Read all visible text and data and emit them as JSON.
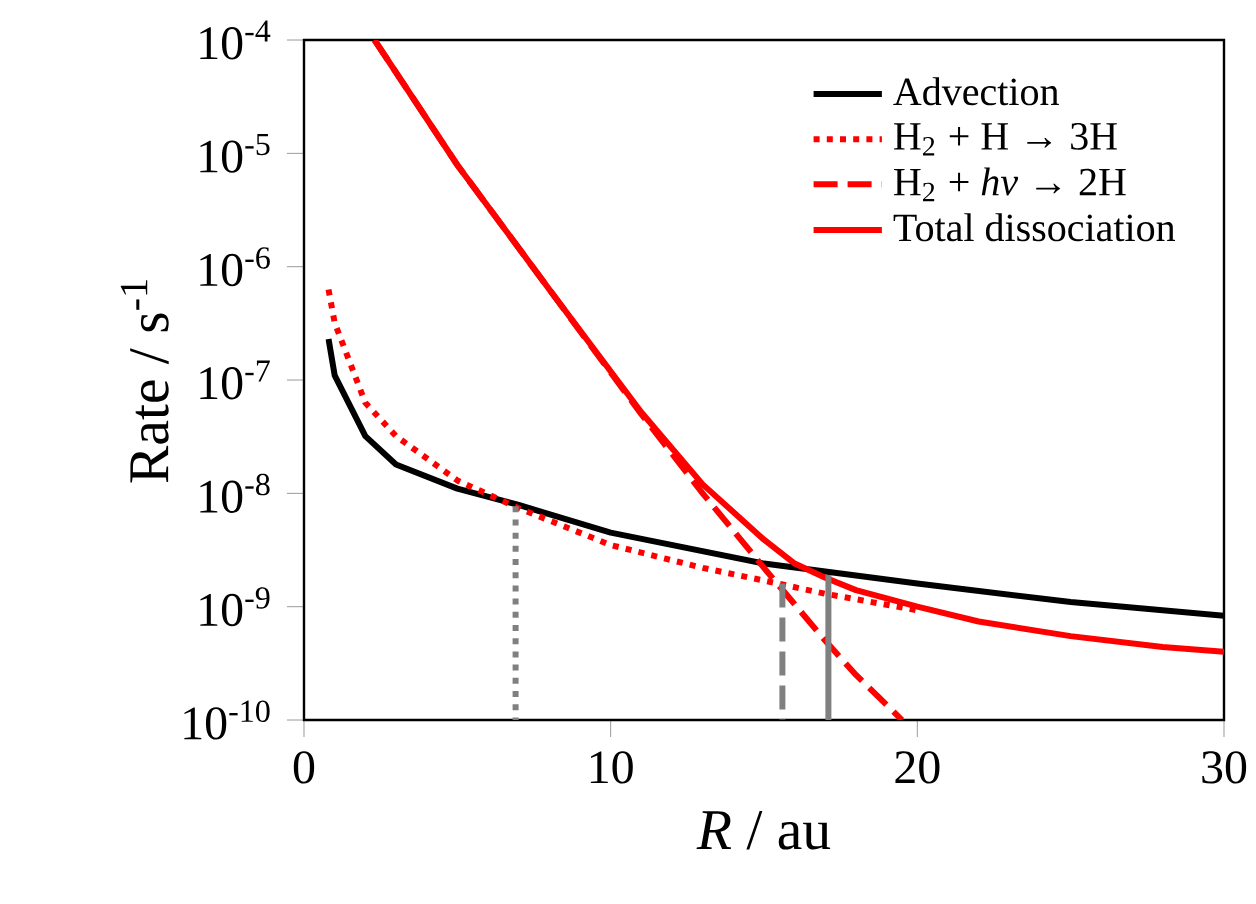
{
  "chart_data": {
    "type": "line",
    "xlabel": "*R* / au",
    "ylabel": "Rate / s$^{-1}$",
    "log": "y",
    "legend": "top right",
    "grid": false,
    "xlim": [
      0,
      30
    ],
    "xticks": [
      0,
      10,
      20,
      30
    ],
    "ylim": [
      1e-10,
      0.0001
    ],
    "yticks": [
      {
        "value": 1e-10,
        "label": "10$^{-10}$"
      },
      {
        "value": 1e-09,
        "label": "10$^{-9}$"
      },
      {
        "value": 1e-08,
        "label": "10$^{-8}$"
      },
      {
        "value": 1e-07,
        "label": "10$^{-7}$"
      },
      {
        "value": 1e-06,
        "label": "10$^{-6}$"
      },
      {
        "value": 1e-05,
        "label": "10$^{-5}$"
      },
      {
        "value": 0.0001,
        "label": "10$^{-4}$"
      }
    ],
    "series": [
      {
        "name": "Advection",
        "color": "#000000",
        "line_style": "solid",
        "x": [
          0.8,
          1,
          2,
          3,
          5,
          7,
          10,
          15,
          20,
          25,
          30
        ],
        "values": [
          2.3e-07,
          1.1e-07,
          3.2e-08,
          1.8e-08,
          1.1e-08,
          7.9e-09,
          4.5e-09,
          2.4e-09,
          1.6e-09,
          1.1e-09,
          8.3e-10
        ]
      },
      {
        "name": "H$_{2}$ + H → 3H",
        "color": "#ff0000",
        "line_style": "dotted",
        "x": [
          0.8,
          1,
          2,
          3,
          5,
          7,
          10,
          13,
          15,
          17,
          20
        ],
        "values": [
          6.3e-07,
          3.2e-07,
          6.3e-08,
          3.2e-08,
          1.3e-08,
          7.4e-09,
          3.5e-09,
          2.2e-09,
          1.7e-09,
          1.3e-09,
          9.3e-10
        ]
      },
      {
        "name": "H$_{2}$ + *hν* → 2H",
        "color": "#ff0000",
        "line_style": "dashed",
        "x": [
          2.3,
          5,
          8,
          11,
          13,
          15,
          16,
          17,
          18,
          19.5
        ],
        "values": [
          0.0001,
          7.9e-06,
          6.3e-07,
          5e-08,
          1e-08,
          2.2e-09,
          1.05e-09,
          5e-10,
          2.5e-10,
          1e-10
        ]
      },
      {
        "name": "Total dissociation",
        "color": "#ff0000",
        "line_style": "solid",
        "x": [
          2.3,
          5,
          8,
          11,
          13,
          15,
          16,
          17,
          18,
          20,
          22,
          25,
          28,
          30
        ],
        "values": [
          0.0001,
          7.9e-06,
          6.3e-07,
          5.2e-08,
          1.2e-08,
          3.9e-09,
          2.4e-09,
          1.8e-09,
          1.4e-09,
          1e-09,
          7.4e-10,
          5.5e-10,
          4.4e-10,
          4e-10
        ]
      },
      {
        "color": "#808080",
        "line_style": "dotted",
        "x": [
          6.9,
          6.9
        ],
        "values": [
          1e-10,
          7.7e-09
        ]
      },
      {
        "color": "#808080",
        "line_style": "dashed",
        "x": [
          15.6,
          15.6
        ],
        "values": [
          1e-10,
          1.6e-09
        ]
      },
      {
        "color": "#808080",
        "line_style": "solid",
        "x": [
          17.1,
          17.1
        ],
        "values": [
          1e-10,
          1.9e-09
        ]
      }
    ]
  }
}
